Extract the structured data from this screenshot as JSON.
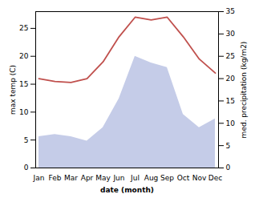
{
  "chart_data": {
    "type": "line",
    "xlabel": "date (month)",
    "ylabel": "max temp (C)",
    "y2label": "med. precipitation (kg/m2)",
    "categories": [
      "Jan",
      "Feb",
      "Mar",
      "Apr",
      "May",
      "Jun",
      "Jul",
      "Aug",
      "Sep",
      "Oct",
      "Nov",
      "Dec"
    ],
    "series": [
      {
        "type": "area",
        "axis": "y2",
        "color": "#c5cce8",
        "values": [
          7.0,
          7.5,
          7.0,
          6.0,
          9.0,
          15.5,
          25.0,
          23.5,
          22.5,
          12.0,
          9.0,
          11.0
        ]
      },
      {
        "type": "line",
        "color": "#c0504d",
        "values": [
          16.0,
          15.5,
          15.3,
          16.0,
          19.0,
          23.5,
          27.0,
          26.5,
          27.0,
          23.5,
          19.5,
          17.0
        ]
      }
    ],
    "ylim": [
      0,
      28
    ],
    "yticks": [
      0,
      5,
      10,
      15,
      20,
      25
    ],
    "y2lim": [
      0,
      35
    ],
    "y2ticks": [
      0,
      5,
      10,
      15,
      20,
      25,
      30,
      35
    ]
  }
}
